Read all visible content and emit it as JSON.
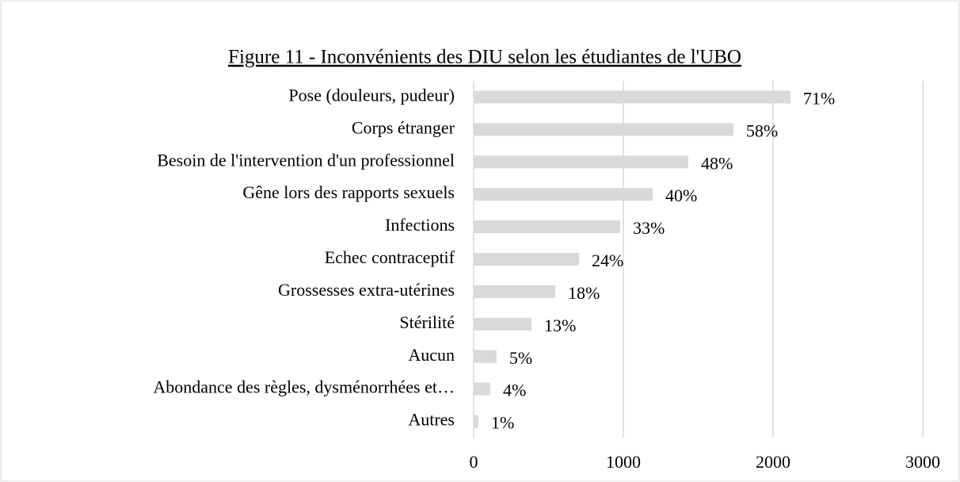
{
  "chart_data": {
    "type": "bar",
    "orientation": "horizontal",
    "title": "Figure 11 - Inconvénients des DIU selon les étudiantes de l'UBO",
    "categories": [
      "Pose (douleurs, pudeur)",
      "Corps étranger",
      "Besoin de l'intervention d'un professionnel",
      "Gêne lors des rapports sexuels",
      "Infections",
      "Echec contraceptif",
      "Grossesses extra-utérines",
      "Stérilité",
      "Aucun",
      "Abondance des règles, dysménorrhées et…",
      "Autres"
    ],
    "values": [
      2116,
      1735,
      1434,
      1196,
      979,
      704,
      545,
      386,
      153,
      111,
      32
    ],
    "value_labels": [
      "71%",
      "58%",
      "48%",
      "40%",
      "33%",
      "24%",
      "18%",
      "13%",
      "5%",
      "4%",
      "1%"
    ],
    "color": "#d9d9d9",
    "xlim": [
      0,
      3000
    ],
    "xticks": [
      0,
      1000,
      2000,
      3000
    ],
    "grid": true
  }
}
